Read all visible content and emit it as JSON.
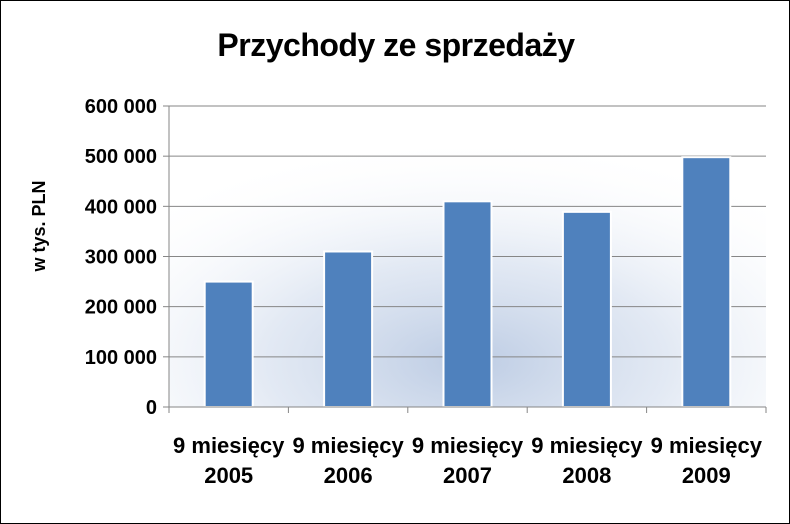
{
  "chart_data": {
    "type": "bar",
    "title": "Przychody ze sprzedaży",
    "xlabel": "",
    "ylabel": "w tys. PLN",
    "categories": [
      [
        "9 miesięcy",
        "2005"
      ],
      [
        "9 miesięcy",
        "2006"
      ],
      [
        "9 miesięcy",
        "2007"
      ],
      [
        "9 miesięcy",
        "2008"
      ],
      [
        "9 miesięcy",
        "2009"
      ]
    ],
    "values": [
      250000,
      310000,
      410000,
      389000,
      498000
    ],
    "ylim": [
      0,
      600000
    ],
    "yticks": [
      0,
      100000,
      200000,
      300000,
      400000,
      500000,
      600000
    ],
    "ytick_labels": [
      "0",
      "100 000",
      "200 000",
      "300 000",
      "400 000",
      "500 000",
      "600 000"
    ],
    "grid": true,
    "legend": "none",
    "bar_color": "#4f81bd",
    "bar_border_color": "#ffffff"
  }
}
